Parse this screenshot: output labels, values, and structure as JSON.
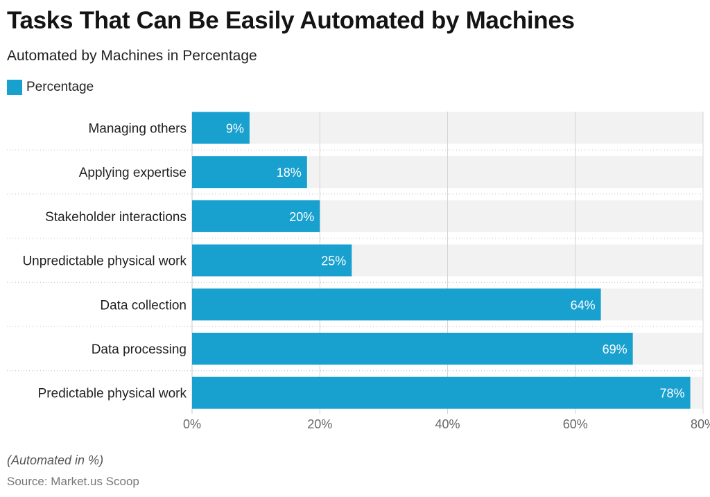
{
  "header": {
    "title": "Tasks That Can Be Easily Automated by Machines",
    "subtitle": "Automated by Machines in Percentage"
  },
  "footer": {
    "note": "(Automated in %)",
    "source": "Source: Market.us Scoop"
  },
  "colors": {
    "bar": "#18a0cf",
    "band": "#f2f2f2",
    "grid": "#d4d4d4"
  },
  "chart_data": {
    "type": "bar",
    "orientation": "horizontal",
    "categories": [
      "Managing others",
      "Applying expertise",
      "Stakeholder interactions",
      "Unpredictable physical work",
      "Data collection",
      "Data processing",
      "Predictable physical work"
    ],
    "series": [
      {
        "name": "Percentage",
        "values": [
          9,
          18,
          20,
          25,
          64,
          69,
          78
        ],
        "labels": [
          "9%",
          "18%",
          "20%",
          "25%",
          "64%",
          "69%",
          "78%"
        ]
      }
    ],
    "xlim": [
      0,
      80
    ],
    "xticks": [
      0,
      20,
      40,
      60,
      80
    ],
    "xtick_labels": [
      "0%",
      "20%",
      "40%",
      "60%",
      "80%"
    ],
    "legend": "top-left",
    "grid": true
  }
}
